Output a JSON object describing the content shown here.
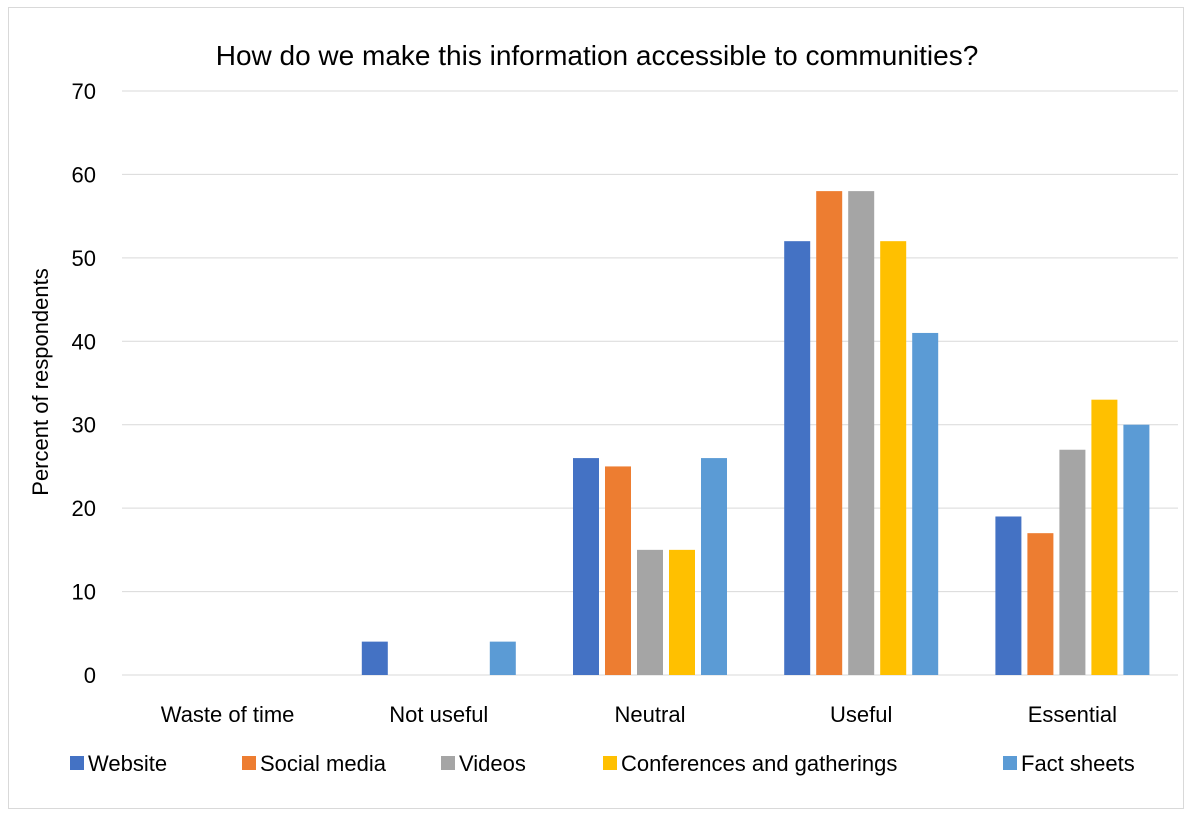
{
  "chart_data": {
    "type": "bar",
    "title": "How do we make this information accessible to communities?",
    "xlabel": "",
    "ylabel": "Percent of respondents",
    "ylim": [
      0,
      70
    ],
    "yticks": [
      0,
      10,
      20,
      30,
      40,
      50,
      60,
      70
    ],
    "grid": true,
    "legend_position": "bottom",
    "categories": [
      "Waste of time",
      "Not useful",
      "Neutral",
      "Useful",
      "Essential"
    ],
    "series": [
      {
        "name": "Website",
        "color": "#4472c4",
        "values": [
          0,
          4,
          26,
          52,
          19
        ]
      },
      {
        "name": "Social media",
        "color": "#ed7d31",
        "values": [
          0,
          0,
          25,
          58,
          17
        ]
      },
      {
        "name": "Videos",
        "color": "#a5a5a5",
        "values": [
          0,
          0,
          15,
          58,
          27
        ]
      },
      {
        "name": "Conferences and gatherings",
        "color": "#ffc000",
        "values": [
          0,
          0,
          15,
          52,
          33
        ]
      },
      {
        "name": "Fact sheets",
        "color": "#5b9bd5",
        "values": [
          0,
          4,
          26,
          41,
          30
        ]
      }
    ]
  }
}
